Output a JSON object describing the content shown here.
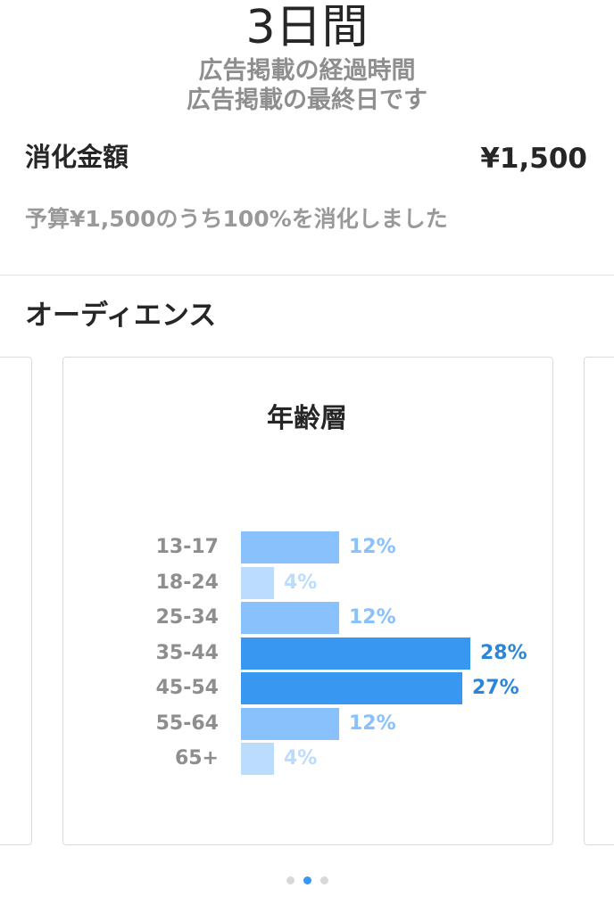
{
  "summary": {
    "duration_value": "3日間",
    "duration_label": "広告掲載の経過時間",
    "duration_note": "広告掲載の最終日です",
    "spend_label": "消化金額",
    "spend_value": "¥1,500",
    "spend_note": "予算¥1,500のうち100%を消化しました"
  },
  "audience": {
    "section_title": "オーディエンス",
    "carousel": {
      "page_count": 3,
      "active_page": 2
    }
  },
  "colors": {
    "bar_high": "#3897f0",
    "bar_mid": "#88c1fb",
    "bar_low": "#bcdcfd",
    "pct_high": "#2b86d9",
    "pct_mid": "#88c1fb",
    "pct_low": "#bcdcfd"
  },
  "chart_data": {
    "type": "bar",
    "title": "年齢層",
    "orientation": "horizontal",
    "categories": [
      "13-17",
      "18-24",
      "25-34",
      "35-44",
      "45-54",
      "55-64",
      "65+"
    ],
    "values": [
      12,
      4,
      12,
      28,
      27,
      12,
      4
    ],
    "value_labels": [
      "12%",
      "4%",
      "12%",
      "28%",
      "27%",
      "12%",
      "4%"
    ],
    "unit": "%",
    "xlim": [
      0,
      28
    ]
  }
}
